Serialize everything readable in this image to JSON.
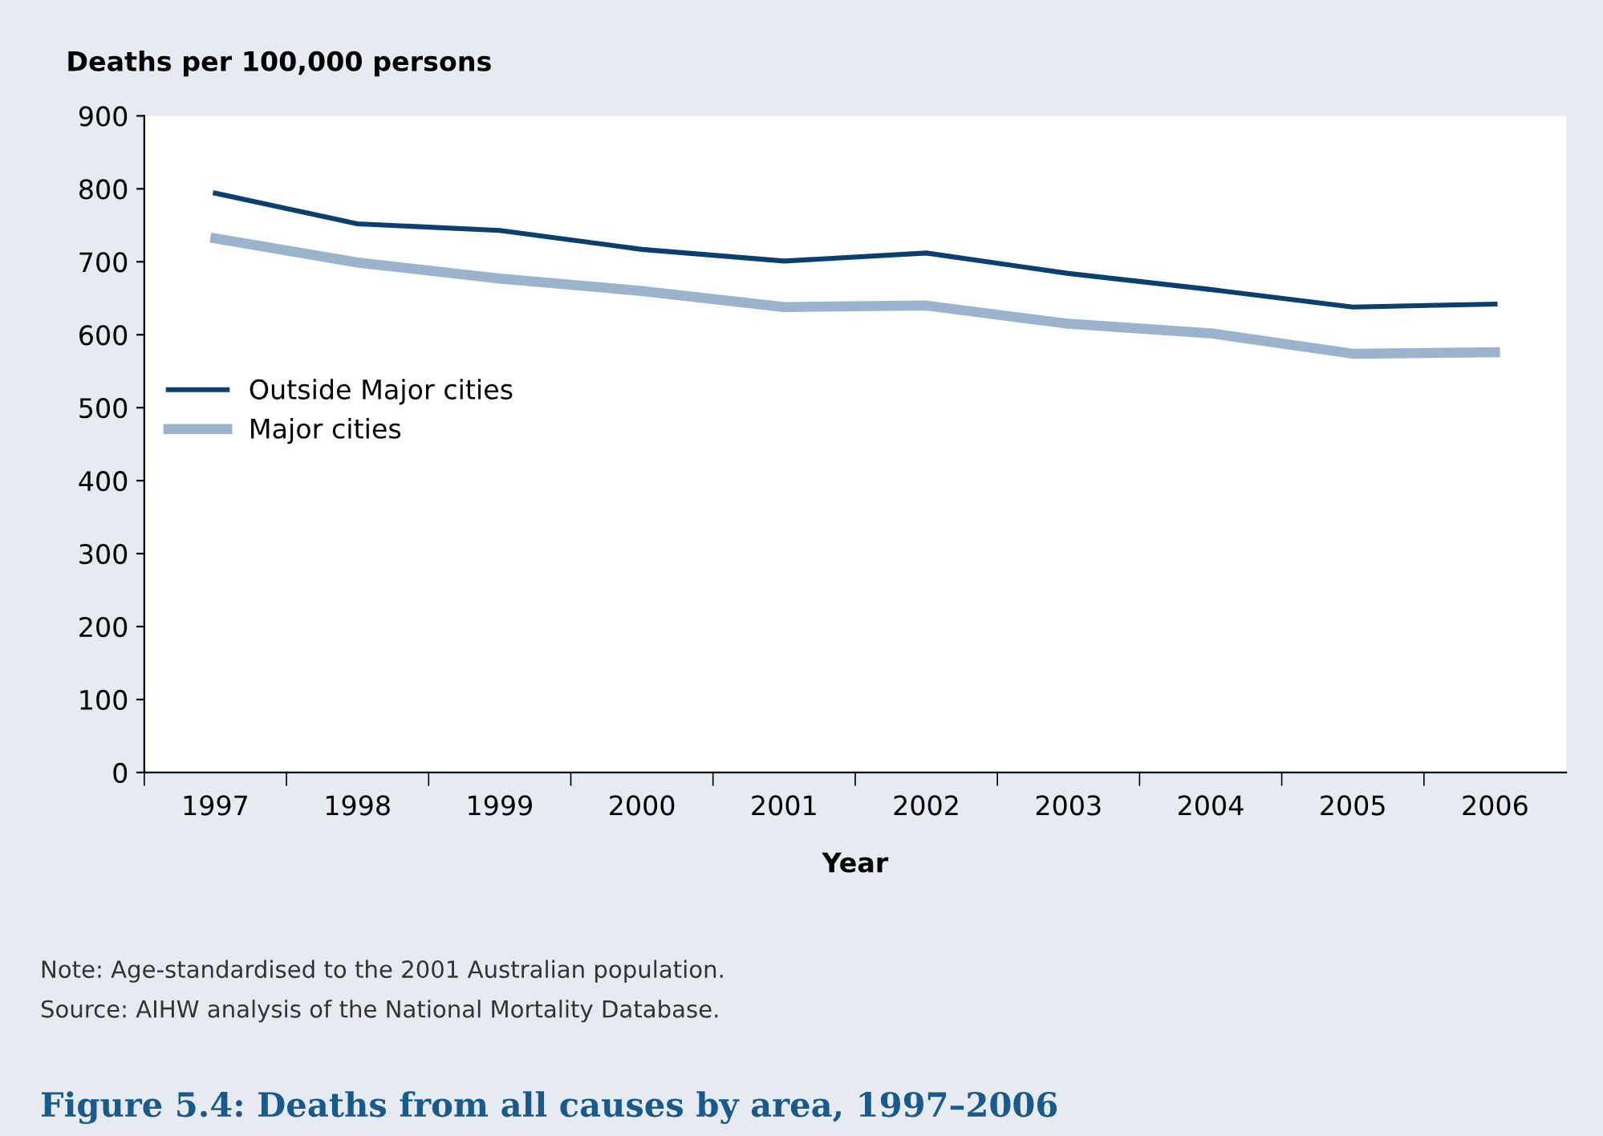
{
  "chart_data": {
    "type": "line",
    "title": "Figure 5.4: Deaths from all causes by area, 1997–2006",
    "xlabel": "Year",
    "ylabel": "Deaths per 100,000 persons",
    "categories": [
      "1997",
      "1998",
      "1999",
      "2000",
      "2001",
      "2002",
      "2003",
      "2004",
      "2005",
      "2006"
    ],
    "series": [
      {
        "name": "Outside Major cities",
        "color": "#0b3f6e",
        "values": [
          794,
          752,
          743,
          717,
          701,
          712,
          684,
          662,
          638,
          642
        ]
      },
      {
        "name": "Major cities",
        "color": "#9bb3cc",
        "values": [
          732,
          699,
          677,
          660,
          638,
          640,
          615,
          602,
          574,
          576
        ]
      }
    ],
    "ylim": [
      0,
      900
    ],
    "yticks": [
      0,
      100,
      200,
      300,
      400,
      500,
      600,
      700,
      800,
      900
    ],
    "grid": false,
    "legend": "left",
    "marker": "none",
    "line_style": "solid",
    "annotations": [
      "Note: Age-standardised to the 2001 Australian population.",
      "Source: AIHW analysis of the National Mortality Database."
    ]
  }
}
